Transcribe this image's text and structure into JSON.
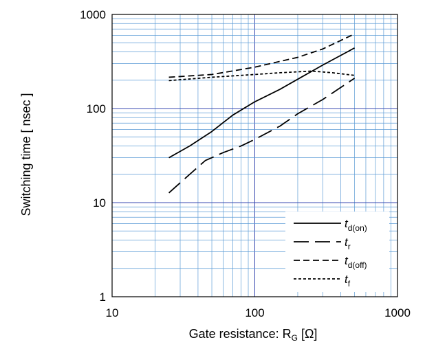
{
  "chart_data": {
    "type": "line",
    "xlabel": "Gate resistance: R",
    "xlabel_sub": "G",
    "xlabel_unit": " [Ω]",
    "ylabel": "Switching time  [ nsec ]",
    "x_scale": "log",
    "y_scale": "log",
    "xlim": [
      10,
      1000
    ],
    "ylim": [
      1,
      1000
    ],
    "x_ticks": [
      {
        "value": 10,
        "label": "10"
      },
      {
        "value": 100,
        "label": "100"
      },
      {
        "value": 1000,
        "label": "1000"
      }
    ],
    "y_ticks": [
      {
        "value": 1,
        "label": "1"
      },
      {
        "value": 10,
        "label": "10"
      },
      {
        "value": 100,
        "label": "100"
      },
      {
        "value": 1000,
        "label": "1000"
      }
    ],
    "grid": true,
    "legend_position": "bottom-right",
    "series": [
      {
        "name": "t",
        "subscript": "d(on)",
        "dash": "solid",
        "points": [
          [
            25,
            30
          ],
          [
            35,
            40
          ],
          [
            50,
            57
          ],
          [
            70,
            85
          ],
          [
            100,
            118
          ],
          [
            150,
            160
          ],
          [
            200,
            205
          ],
          [
            300,
            290
          ],
          [
            500,
            440
          ]
        ]
      },
      {
        "name": "t",
        "subscript": "r",
        "dash": "long-dash",
        "points": [
          [
            25,
            12.7
          ],
          [
            35,
            20
          ],
          [
            45,
            28
          ],
          [
            60,
            34
          ],
          [
            80,
            40
          ],
          [
            100,
            47
          ],
          [
            150,
            65
          ],
          [
            200,
            88
          ],
          [
            300,
            125
          ],
          [
            500,
            210
          ]
        ]
      },
      {
        "name": "t",
        "subscript": "d(off)",
        "dash": "dash",
        "points": [
          [
            25,
            215
          ],
          [
            50,
            230
          ],
          [
            100,
            275
          ],
          [
            200,
            350
          ],
          [
            300,
            430
          ],
          [
            500,
            620
          ]
        ]
      },
      {
        "name": "t",
        "subscript": "f",
        "dash": "short-dash",
        "points": [
          [
            25,
            198
          ],
          [
            50,
            215
          ],
          [
            100,
            230
          ],
          [
            150,
            240
          ],
          [
            250,
            250
          ],
          [
            350,
            240
          ],
          [
            500,
            225
          ]
        ]
      }
    ]
  },
  "colors": {
    "major_grid": "#3a4ab0",
    "minor_grid": "#5b9bd5",
    "frame": "#000000",
    "line": "#000000",
    "text": "#000000"
  }
}
